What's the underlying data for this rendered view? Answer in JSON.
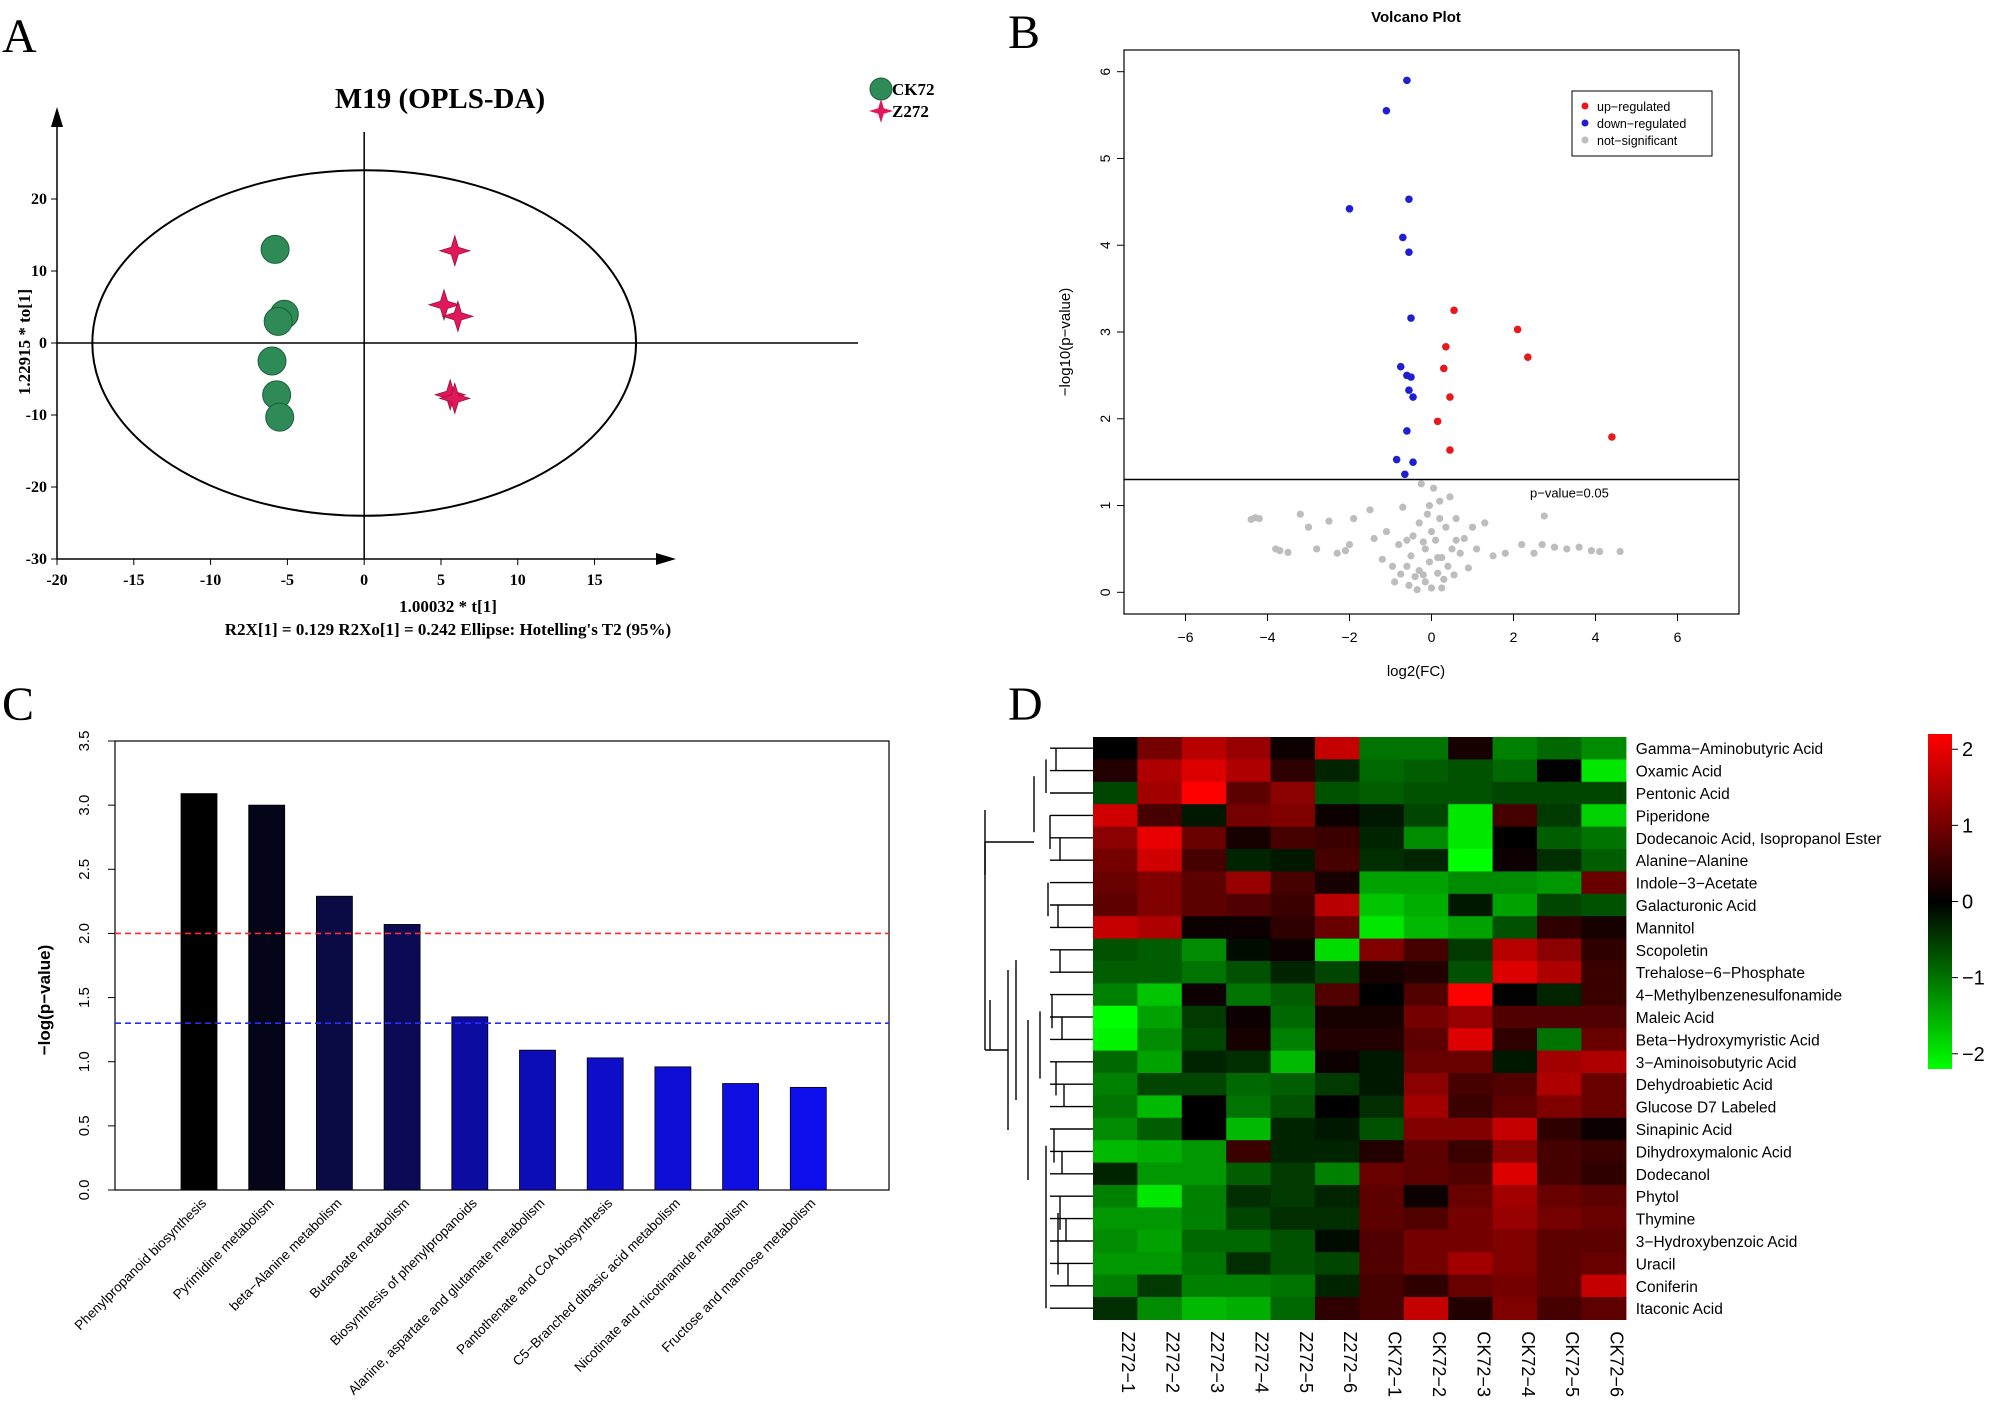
{
  "panel_letters": [
    "A",
    "B",
    "C",
    "D"
  ],
  "chart_data": [
    {
      "type": "scatter",
      "title": "M19 (OPLS-DA)",
      "xlabel": "1.00032 * t[1]",
      "ylabel": "1.22915 * to[1]",
      "footnote": "R2X[1] = 0.129     R2Xo[1] = 0.242     Ellipse: Hotelling's T2 (95%)",
      "xlim": [
        -20,
        19
      ],
      "ylim": [
        -30,
        30
      ],
      "xticks": [
        -20,
        -15,
        -10,
        -5,
        0,
        5,
        10,
        15
      ],
      "yticks": [
        -30,
        -20,
        -10,
        0,
        10,
        20
      ],
      "ellipse": {
        "cx": 0,
        "cy": 0,
        "rx": 17.7,
        "ry": 24
      },
      "legend": [
        {
          "name": "CK72",
          "marker": "circle",
          "color": "#2e8b57"
        },
        {
          "name": "Z272",
          "marker": "star",
          "color": "#e0185a"
        }
      ],
      "series": [
        {
          "name": "CK72",
          "color": "#2e8b57",
          "points": [
            [
              -5.8,
              13
            ],
            [
              -5.2,
              4
            ],
            [
              -5.6,
              3
            ],
            [
              -6.0,
              -2.5
            ],
            [
              -5.7,
              -7.2
            ],
            [
              -5.5,
              -10.3
            ]
          ]
        },
        {
          "name": "Z272",
          "color": "#e0185a",
          "points": [
            [
              5.9,
              12.8
            ],
            [
              5.2,
              5.3
            ],
            [
              6.1,
              3.7
            ],
            [
              5.6,
              -7.2
            ],
            [
              5.9,
              -7.7
            ]
          ]
        }
      ]
    },
    {
      "type": "scatter",
      "title": "Volcano Plot",
      "xlabel": "log2(FC)",
      "ylabel": "−log10(p−value)",
      "xlim": [
        -7.5,
        7.5
      ],
      "ylim": [
        -0.25,
        6.25
      ],
      "xticks": [
        -6,
        -4,
        -2,
        0,
        2,
        4,
        6
      ],
      "yticks": [
        0,
        1,
        2,
        3,
        4,
        5,
        6
      ],
      "threshold": {
        "y": 1.3,
        "label": "p−value=0.05"
      },
      "legend": [
        {
          "name": "up−regulated",
          "color": "#e41a1c"
        },
        {
          "name": "down−regulated",
          "color": "#1f1fd1"
        },
        {
          "name": "not−significant",
          "color": "#bdbdbd"
        }
      ],
      "series": [
        {
          "name": "up−regulated",
          "color": "#e41a1c",
          "points": [
            [
              0.55,
              3.25
            ],
            [
              2.1,
              3.03
            ],
            [
              2.35,
              2.71
            ],
            [
              0.35,
              2.83
            ],
            [
              0.3,
              2.58
            ],
            [
              0.45,
              2.25
            ],
            [
              0.15,
              1.97
            ],
            [
              0.45,
              1.64
            ],
            [
              4.4,
              1.79
            ]
          ]
        },
        {
          "name": "down−regulated",
          "color": "#1f1fd1",
          "points": [
            [
              -0.6,
              5.9
            ],
            [
              -1.1,
              5.55
            ],
            [
              -0.55,
              4.53
            ],
            [
              -2.0,
              4.42
            ],
            [
              -0.7,
              4.09
            ],
            [
              -0.55,
              3.92
            ],
            [
              -0.5,
              3.16
            ],
            [
              -0.75,
              2.6
            ],
            [
              -0.6,
              2.5
            ],
            [
              -0.5,
              2.48
            ],
            [
              -0.55,
              2.33
            ],
            [
              -0.45,
              2.25
            ],
            [
              -0.6,
              1.86
            ],
            [
              -0.85,
              1.53
            ],
            [
              -0.45,
              1.5
            ],
            [
              -0.65,
              1.36
            ]
          ]
        },
        {
          "name": "not−significant",
          "color": "#bdbdbd",
          "points": [
            [
              -4.4,
              0.84
            ],
            [
              -4.3,
              0.86
            ],
            [
              -4.2,
              0.85
            ],
            [
              -3.7,
              0.48
            ],
            [
              -3.8,
              0.5
            ],
            [
              -3.5,
              0.46
            ],
            [
              -3.2,
              0.9
            ],
            [
              -3.0,
              0.75
            ],
            [
              -2.8,
              0.5
            ],
            [
              -2.5,
              0.82
            ],
            [
              -2.3,
              0.45
            ],
            [
              -2.1,
              0.48
            ],
            [
              -2.0,
              0.55
            ],
            [
              -1.9,
              0.85
            ],
            [
              -1.5,
              0.95
            ],
            [
              -1.4,
              0.62
            ],
            [
              -1.2,
              0.38
            ],
            [
              -1.1,
              0.7
            ],
            [
              -0.95,
              0.3
            ],
            [
              -0.9,
              0.12
            ],
            [
              -0.8,
              0.55
            ],
            [
              -0.75,
              0.21
            ],
            [
              -0.7,
              0.98
            ],
            [
              -0.6,
              0.3
            ],
            [
              -0.55,
              0.08
            ],
            [
              -0.5,
              0.42
            ],
            [
              -0.45,
              0.65
            ],
            [
              -0.4,
              0.18
            ],
            [
              -0.35,
              0.03
            ],
            [
              -0.3,
              0.25
            ],
            [
              -0.25,
              1.25
            ],
            [
              -0.2,
              0.58
            ],
            [
              -0.15,
              0.12
            ],
            [
              -0.1,
              0.9
            ],
            [
              -0.05,
              0.35
            ],
            [
              0.0,
              0.05
            ],
            [
              0.05,
              1.2
            ],
            [
              0.1,
              0.6
            ],
            [
              0.15,
              0.22
            ],
            [
              0.2,
              1.05
            ],
            [
              0.25,
              0.4
            ],
            [
              0.3,
              0.15
            ],
            [
              0.35,
              0.75
            ],
            [
              0.4,
              0.3
            ],
            [
              0.45,
              1.1
            ],
            [
              0.5,
              0.5
            ],
            [
              0.55,
              0.2
            ],
            [
              0.6,
              0.85
            ],
            [
              0.7,
              0.45
            ],
            [
              0.8,
              0.62
            ],
            [
              0.9,
              0.28
            ],
            [
              1.0,
              0.75
            ],
            [
              1.1,
              0.5
            ],
            [
              1.3,
              0.8
            ],
            [
              1.5,
              0.42
            ],
            [
              1.8,
              0.45
            ],
            [
              2.2,
              0.55
            ],
            [
              2.5,
              0.45
            ],
            [
              2.7,
              0.55
            ],
            [
              2.75,
              0.88
            ],
            [
              3.0,
              0.52
            ],
            [
              3.3,
              0.5
            ],
            [
              3.6,
              0.52
            ],
            [
              3.9,
              0.48
            ],
            [
              4.1,
              0.47
            ],
            [
              4.6,
              0.47
            ],
            [
              -0.15,
              0.5
            ],
            [
              0.0,
              0.7
            ],
            [
              -0.3,
              0.8
            ],
            [
              0.2,
              0.85
            ],
            [
              -0.05,
              1.0
            ],
            [
              0.15,
              0.4
            ],
            [
              -0.2,
              0.2
            ],
            [
              0.25,
              0.05
            ],
            [
              -0.6,
              0.6
            ],
            [
              0.6,
              0.6
            ]
          ]
        }
      ]
    },
    {
      "type": "bar",
      "ylabel": "−log(p−value)",
      "ylim": [
        0,
        3.5
      ],
      "yticks": [
        0.0,
        0.5,
        1.0,
        1.5,
        2.0,
        2.5,
        3.0,
        3.5
      ],
      "thresholds": [
        {
          "y": 2.0,
          "color": "#ff2a2a"
        },
        {
          "y": 1.3,
          "color": "#2a2aff"
        }
      ],
      "categories": [
        "Phenylpropanoid biosynthesis",
        "Pyrimidine metabolism",
        "beta−Alanine metabolism",
        "Butanoate metabolism",
        "Biosynthesis of phenylpropanoids",
        "Alanine, aspartate and glutamate metabolism",
        "Pantothenate and CoA biosynthesis",
        "C5−Branched dibasic acid metabolism",
        "Nicotinate and nicotinamide metabolism",
        "Fructose and mannose metabolism"
      ],
      "values": [
        3.09,
        3.0,
        2.29,
        2.07,
        1.35,
        1.09,
        1.03,
        0.96,
        0.83,
        0.8
      ],
      "colors": [
        "#000000",
        "#05051a",
        "#0a0a45",
        "#0a0a55",
        "#0c0ca0",
        "#0d0db8",
        "#0e0ec8",
        "#0e0ed6",
        "#0f0fe4",
        "#0f0fee"
      ]
    },
    {
      "type": "heatmap",
      "columns": [
        "Z272−1",
        "Z272−2",
        "Z272−3",
        "Z272−4",
        "Z272−5",
        "Z272−6",
        "CK72−1",
        "CK72−2",
        "CK72−3",
        "CK72−4",
        "CK72−5",
        "CK72−6"
      ],
      "rows": [
        "Gamma−Aminobutyric Acid",
        "Oxamic Acid",
        "Pentonic Acid",
        "Piperidone",
        "Dodecanoic Acid, Isopropanol Ester",
        "Alanine−Alanine",
        "Indole−3−Acetate",
        "Galacturonic Acid",
        "Mannitol",
        "Scopoletin",
        "Trehalose−6−Phosphate",
        "4−Methylbenzenesulfonamide",
        "Maleic Acid",
        "Beta−Hydroxymyristic Acid",
        "3−Aminoisobutyric Acid",
        "Dehydroabietic Acid",
        "Glucose D7 Labeled",
        "Sinapinic Acid",
        "Dihydroxymalonic Acid",
        "Dodecanol",
        "Phytol",
        "Thymine",
        "3−Hydroxybenzoic Acid",
        "Uracil",
        "Coniferin",
        "Itaconic Acid"
      ],
      "color_scale": {
        "min": -2.2,
        "max": 2.2,
        "ticks": [
          2,
          1,
          0,
          -1,
          -2
        ],
        "low": "#00ff00",
        "mid": "#000000",
        "high": "#ff0000"
      },
      "values": [
        [
          0.0,
          1.0,
          1.6,
          1.3,
          0.1,
          1.7,
          -1.0,
          -1.0,
          0.2,
          -1.1,
          -0.9,
          -1.2
        ],
        [
          0.3,
          1.5,
          1.9,
          1.5,
          0.4,
          -0.3,
          -0.9,
          -0.8,
          -0.7,
          -0.9,
          0.0,
          -2.0
        ],
        [
          -0.6,
          1.4,
          2.2,
          0.8,
          1.2,
          -0.7,
          -0.8,
          -0.7,
          -0.7,
          -0.6,
          -0.6,
          -0.6
        ],
        [
          1.8,
          0.6,
          -0.2,
          1.0,
          1.1,
          0.1,
          -0.2,
          -0.6,
          -2.0,
          0.6,
          -0.5,
          -1.8
        ],
        [
          1.2,
          2.0,
          0.9,
          0.2,
          0.6,
          0.5,
          -0.3,
          -1.2,
          -2.0,
          0.0,
          -0.8,
          -1.0
        ],
        [
          1.0,
          1.8,
          0.6,
          -0.3,
          -0.2,
          0.6,
          -0.4,
          -0.3,
          -2.2,
          0.1,
          -0.4,
          -0.8
        ],
        [
          0.9,
          1.1,
          0.8,
          1.3,
          0.6,
          0.2,
          -1.4,
          -1.4,
          -1.2,
          -1.2,
          -1.3,
          0.9
        ],
        [
          0.8,
          1.1,
          0.8,
          0.7,
          0.5,
          1.6,
          -1.7,
          -1.5,
          -0.2,
          -1.4,
          -0.6,
          -0.7
        ],
        [
          1.7,
          1.5,
          0.1,
          0.1,
          0.4,
          0.9,
          -2.0,
          -1.6,
          -1.4,
          -0.7,
          0.4,
          0.2
        ],
        [
          -0.7,
          -0.8,
          -1.2,
          -0.1,
          0.1,
          -1.9,
          1.1,
          0.6,
          -0.5,
          1.6,
          1.2,
          0.4
        ],
        [
          -0.8,
          -0.8,
          -1.0,
          -0.7,
          -0.3,
          -0.6,
          0.2,
          0.3,
          -0.7,
          1.9,
          1.5,
          0.5
        ],
        [
          -1.1,
          -1.7,
          0.1,
          -1.0,
          -0.8,
          0.7,
          0.0,
          0.7,
          2.2,
          0.0,
          -0.3,
          0.5
        ],
        [
          -2.2,
          -1.4,
          -0.5,
          0.1,
          -0.9,
          0.2,
          0.2,
          1.0,
          1.3,
          0.7,
          0.7,
          0.7
        ],
        [
          -2.1,
          -1.2,
          -0.6,
          0.2,
          -1.1,
          0.3,
          0.3,
          0.8,
          1.9,
          0.4,
          -1.0,
          0.9
        ],
        [
          -0.9,
          -1.4,
          -0.3,
          -0.4,
          -1.6,
          0.1,
          -0.2,
          0.9,
          0.9,
          -0.2,
          1.4,
          1.5
        ],
        [
          -1.1,
          -0.6,
          -0.6,
          -0.9,
          -0.8,
          -0.5,
          -0.2,
          1.2,
          0.6,
          0.7,
          1.5,
          0.9
        ],
        [
          -1.0,
          -1.6,
          0.0,
          -1.0,
          -0.7,
          0.0,
          -0.4,
          1.4,
          0.5,
          0.8,
          1.1,
          0.9
        ],
        [
          -1.2,
          -0.8,
          0.0,
          -1.6,
          -0.3,
          -0.2,
          -0.7,
          1.1,
          1.1,
          1.7,
          0.4,
          0.1
        ],
        [
          -1.6,
          -1.5,
          -1.3,
          0.5,
          -0.3,
          -0.3,
          0.3,
          0.8,
          0.5,
          1.2,
          0.6,
          0.5
        ],
        [
          -0.3,
          -1.3,
          -1.3,
          -0.8,
          -0.5,
          -1.1,
          0.9,
          0.8,
          0.7,
          1.9,
          0.6,
          0.4
        ],
        [
          -1.1,
          -2.0,
          -1.1,
          -0.4,
          -0.5,
          -0.3,
          0.8,
          0.1,
          0.9,
          1.4,
          0.9,
          0.8
        ],
        [
          -1.3,
          -1.3,
          -1.1,
          -0.6,
          -0.4,
          -0.4,
          0.8,
          0.7,
          1.0,
          1.3,
          1.0,
          0.9
        ],
        [
          -1.2,
          -1.4,
          -0.9,
          -0.9,
          -0.7,
          -0.1,
          0.7,
          1.0,
          1.0,
          1.1,
          0.8,
          0.8
        ],
        [
          -1.3,
          -1.3,
          -1.0,
          -0.4,
          -0.7,
          -0.6,
          0.7,
          1.0,
          1.4,
          1.1,
          0.8,
          0.9
        ],
        [
          -1.1,
          -0.5,
          -1.1,
          -1.1,
          -1.0,
          -0.3,
          0.6,
          0.4,
          0.9,
          1.0,
          0.8,
          1.7
        ],
        [
          -0.4,
          -1.2,
          -1.6,
          -1.5,
          -0.9,
          0.4,
          0.6,
          1.7,
          0.3,
          1.1,
          0.6,
          0.8
        ]
      ]
    }
  ]
}
